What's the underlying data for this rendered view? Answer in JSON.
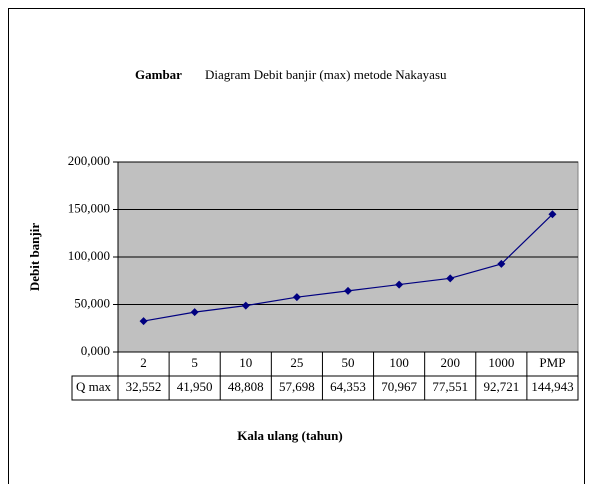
{
  "chart_data": {
    "type": "line",
    "title_prefix": "Gambar",
    "title": "Diagram Debit banjir (max) metode Nakayasu",
    "y_label": "Debit banjir",
    "x_label": "Kala ulang (tahun)",
    "categories": [
      "2",
      "5",
      "10",
      "25",
      "50",
      "100",
      "200",
      "1000",
      "PMP"
    ],
    "series": [
      {
        "name": "Q max",
        "color": "#000080",
        "values": [
          32.552,
          41.95,
          48.808,
          57.698,
          64.353,
          70.967,
          77.551,
          92.721,
          144.943
        ],
        "value_labels": [
          "32,552",
          "41,950",
          "48,808",
          "57,698",
          "64,353",
          "70,967",
          "77,551",
          "92,721",
          "144,943"
        ]
      }
    ],
    "ylim": [
      0,
      200
    ],
    "yticks": [
      {
        "value": 0,
        "label": "0,000"
      },
      {
        "value": 50,
        "label": "50,000"
      },
      {
        "value": 100,
        "label": "100,000"
      },
      {
        "value": 150,
        "label": "150,000"
      },
      {
        "value": 200,
        "label": "200,000"
      }
    ],
    "grid": true
  }
}
